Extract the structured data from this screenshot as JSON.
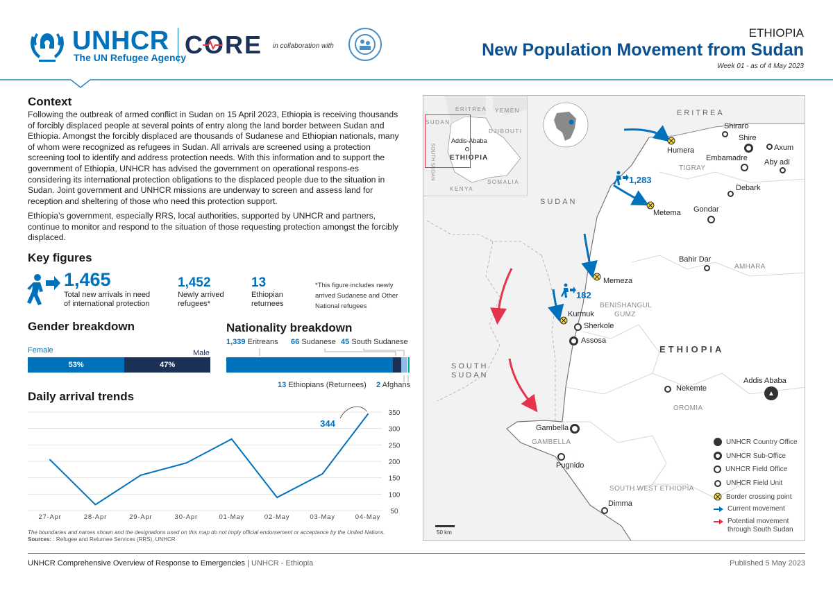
{
  "header": {
    "org_name": "UNHCR",
    "org_tagline": "The UN Refugee Agency",
    "core_label": "CORE",
    "collab_text": "in collaboration with",
    "country": "ETHIOPIA",
    "title": "New Population Movement from Sudan",
    "subtitle": "Week 01 - as of 4 May 2023"
  },
  "context": {
    "heading": "Context",
    "para1": "Following the outbreak of armed conflict in Sudan on 15 April 2023, Ethiopia is receiving thousands of forcibly displaced people at several points of entry along the land border between Sudan and Ethiopia. Amongst the forcibly displaced are thousands of Sudanese and Ethiopian nationals, many of whom were recognized as refugees in Sudan. All arrivals are screened using a protection screening tool to identify and address protection needs. With this information and to support the government of Ethiopia, UNHCR has advised the government on operational respons-es considering its international protection obligations to the displaced people due to the situation in Sudan. Joint government and UNHCR missions are underway to screen and assess land for reception and sheltering of those who need this protection support.",
    "para2": "Ethiopia’s government, especially RRS, local authorities, supported by UNHCR and partners, continue to monitor and respond to the situation of those requesting protection amongst the forcibly displaced."
  },
  "key_figures": {
    "heading": "Key figures",
    "total": "1,465",
    "total_label1": "Total new arrivals in need",
    "total_label2": "of international protection",
    "refugees": "1,452",
    "refugees_label1": "Newly arrived",
    "refugees_label2": "refugees*",
    "returnees": "13",
    "returnees_label1": "Ethiopian",
    "returnees_label2": "returnees",
    "note1": "*This figure includes newly",
    "note2": "arrived Sudanese and Other",
    "note3": "National refugees"
  },
  "gender": {
    "heading": "Gender breakdown",
    "female_label": "Female",
    "male_label": "Male",
    "female_pct": "53%",
    "male_pct": "47%",
    "female_share": 0.53,
    "female_color": "#0072bc",
    "male_color": "#1b3158"
  },
  "nationality": {
    "heading": "Nationality breakdown",
    "items": [
      {
        "value": "1,339",
        "label": "Eritreans",
        "count": 1339,
        "color": "#0072bc"
      },
      {
        "value": "66",
        "label": "Sudanese",
        "count": 66,
        "color": "#1b3158"
      },
      {
        "value": "45",
        "label": "South Sudanese",
        "count": 45,
        "color": "#8ebae5"
      },
      {
        "value": "13",
        "label": "Ethiopians (Returnees)",
        "count": 13,
        "color": "#c9dff3"
      },
      {
        "value": "2",
        "label": "Afghans",
        "count": 2,
        "color": "#00b398"
      }
    ]
  },
  "chart_data": {
    "type": "line",
    "title": "Daily arrival trends",
    "categories": [
      "27-Apr",
      "28-Apr",
      "29-Apr",
      "30-Apr",
      "01-May",
      "02-May",
      "03-May",
      "04-May"
    ],
    "values": [
      205,
      68,
      158,
      195,
      268,
      90,
      162,
      344
    ],
    "ylim": [
      50,
      350
    ],
    "yticks": [
      "50",
      "100",
      "150",
      "200",
      "250",
      "300",
      "350"
    ],
    "annotation": "344",
    "grid": true,
    "line_color": "#0072bc"
  },
  "footnote": {
    "disclaimer": "The boundaries and names shown and the designations used on this map do not imply official endorsement or acceptance by the United Nations.",
    "sources_label": "Sources:",
    "sources_text": ": Refugee and Returnee Services (RRS), UNHCR"
  },
  "map": {
    "inset": {
      "eritrea": "ERITREA",
      "yemen": "YEMEN",
      "sudan": "SUDAN",
      "djibouti": "DJIBOUTI",
      "addis": "Addis-Ababa",
      "ethiopia": "ETHIOPIA",
      "south_sudan": "SOUTH SUDAN",
      "somalia": "SOMALIA",
      "kenya": "KENYA"
    },
    "countries": {
      "eritrea": "ERITREA",
      "sudan": "SUDAN",
      "south_sudan_1": "SOUTH",
      "south_sudan_2": "SUDAN",
      "ethiopia": "ETHIOPIA"
    },
    "regions": {
      "tigray": "TIGRAY",
      "amhara": "AMHARA",
      "benishangul1": "BENISHANGUL",
      "benishangul2": "GUMZ",
      "oromia": "OROMIA",
      "gambella": "GAMBELLA",
      "south_west": "SOUTH WEST ETHIOPIA"
    },
    "places": {
      "shiraro": "Shiraro",
      "shire": "Shire",
      "axum": "Axum",
      "humera": "Humera",
      "embamadre": "Embamadre",
      "aby_adi": "Aby adi",
      "debark": "Debark",
      "metema": "Metema",
      "gondar": "Gondar",
      "bahir_dar": "Bahir Dar",
      "memeza": "Memeza",
      "kurmuk": "Kurmuk",
      "sherkole": "Sherkole",
      "assosa": "Assosa",
      "nekemte": "Nekemte",
      "addis_ababa": "Addis Ababa",
      "gambella": "Gambella",
      "pugnido": "Pugnido",
      "dimma": "Dimma"
    },
    "flow_1": "1,283",
    "flow_2": "182",
    "scale": "50 km",
    "legend": {
      "country_office": "UNHCR Country Office",
      "sub_office": "UNHCR Sub-Office",
      "field_office": "UNHCR Field Office",
      "field_unit": "UNHCR Field Unit",
      "border_point": "Border crossing point",
      "current": "Current movement",
      "potential1": "Potential movement",
      "potential2": "through South Sudan"
    }
  },
  "footer": {
    "left_main": "UNHCR Comprehensive Overview of Response to Emergencies",
    "left_sep": "|",
    "left_sub": "UNHCR - Ethiopia",
    "right": "Published 5 May 2023"
  }
}
